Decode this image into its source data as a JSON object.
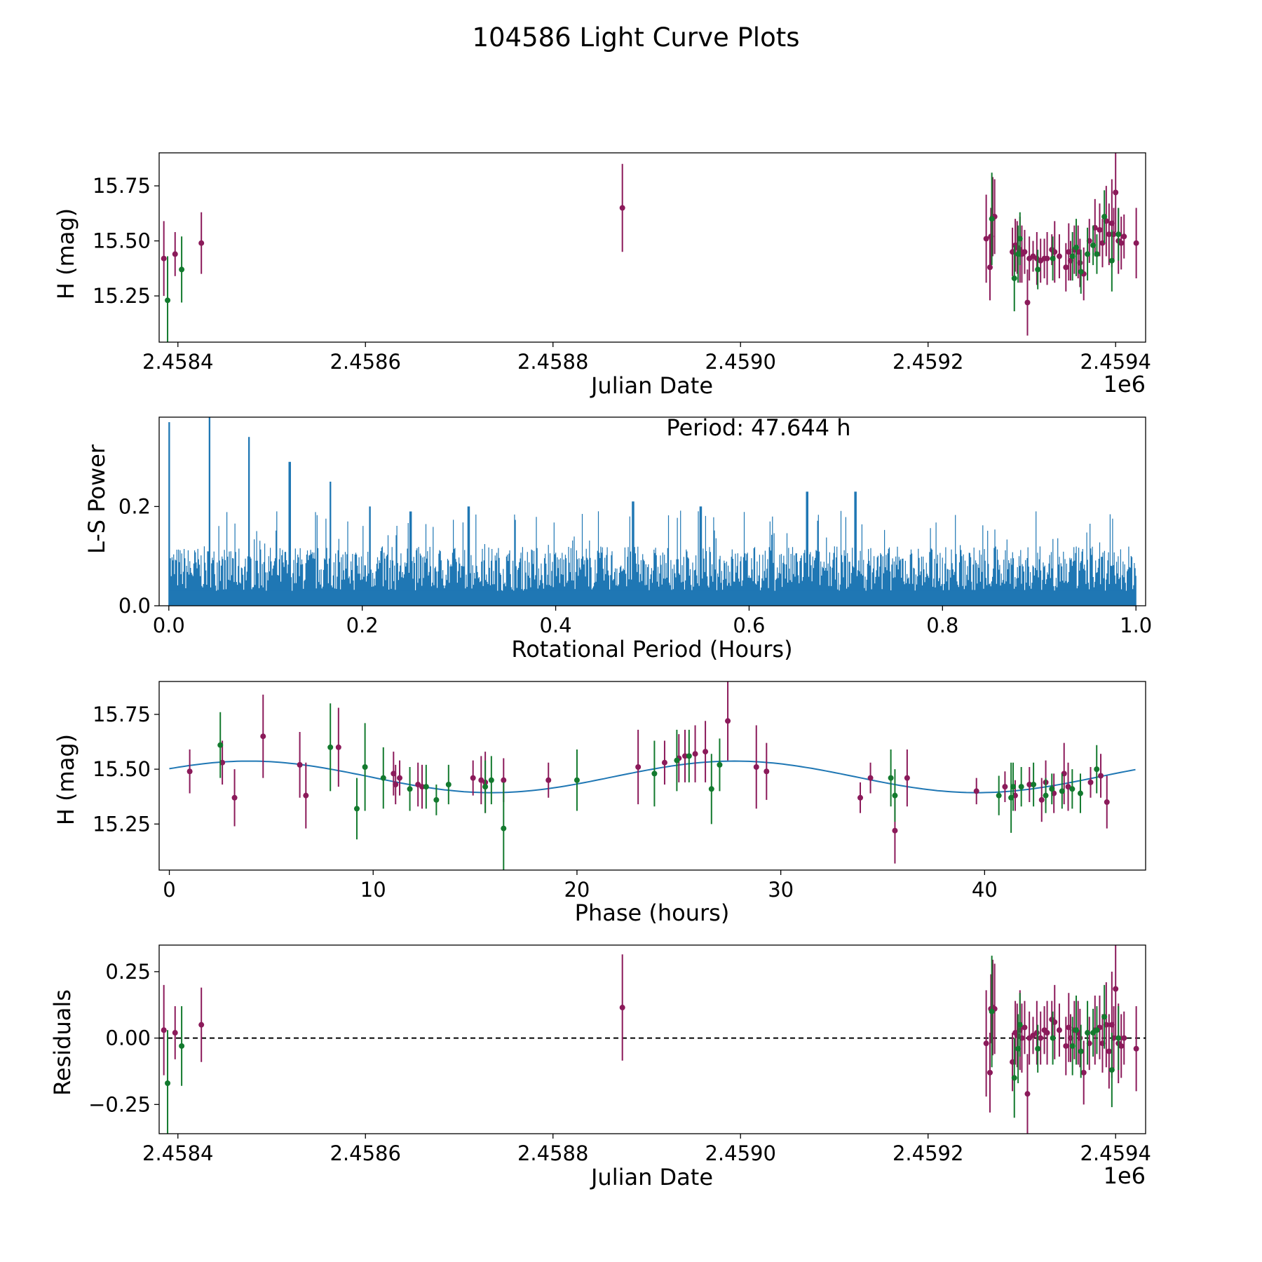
{
  "title": "104586 Light Curve Plots",
  "colors": {
    "band_a": "#8b1a5a",
    "band_b": "#137a2e",
    "periodogram": "#1f77b4",
    "model": "#1f77b4",
    "zero_line": "#000000"
  },
  "chart_data": [
    {
      "id": "lightcurve",
      "type": "scatter",
      "xlabel": "Julian Date",
      "ylabel": "H (mag)",
      "x_offset_label": "1e6",
      "xlim": [
        2.45838,
        2.459432
      ],
      "ylim": [
        15.04,
        15.9
      ],
      "xticks": [
        2.4584,
        2.4586,
        2.4588,
        2.459,
        2.4592,
        2.4594
      ],
      "xtick_labels": [
        "2.4584",
        "2.4586",
        "2.4588",
        "2.4590",
        "2.4592",
        "2.4594"
      ],
      "yticks": [
        15.25,
        15.5,
        15.75
      ],
      "ytick_labels": [
        "15.25",
        "15.50",
        "15.75"
      ],
      "series": [
        {
          "name": "band_a",
          "color": "#8b1a5a",
          "x": [
            2.458385,
            2.458397,
            2.458425,
            2.458874,
            2.459262,
            2.459266,
            2.459267,
            2.459269,
            2.459271,
            2.45929,
            2.459293,
            2.459295,
            2.459298,
            2.4593,
            2.459303,
            2.459306,
            2.459308,
            2.459312,
            2.459316,
            2.45932,
            2.459324,
            2.459327,
            2.459332,
            2.459335,
            2.45934,
            2.459347,
            2.45935,
            2.459352,
            2.459356,
            2.45936,
            2.459362,
            2.459366,
            2.459372,
            2.459378,
            2.459383,
            2.459386,
            2.45939,
            2.459393,
            2.459396,
            2.459398,
            2.4594,
            2.459403,
            2.459406,
            2.459409,
            2.459422
          ],
          "y": [
            15.42,
            15.44,
            15.49,
            15.65,
            15.51,
            15.38,
            15.52,
            15.61,
            15.61,
            15.45,
            15.48,
            15.47,
            15.46,
            15.44,
            15.45,
            15.22,
            15.42,
            15.43,
            15.42,
            15.41,
            15.42,
            15.42,
            15.46,
            15.45,
            15.43,
            15.38,
            15.45,
            15.41,
            15.46,
            15.45,
            15.4,
            15.35,
            15.5,
            15.56,
            15.55,
            15.49,
            15.59,
            15.53,
            15.58,
            15.53,
            15.72,
            15.5,
            15.49,
            15.52,
            15.49
          ],
          "err": [
            0.17,
            0.1,
            0.14,
            0.2,
            0.2,
            0.15,
            0.13,
            0.18,
            0.17,
            0.11,
            0.12,
            0.12,
            0.15,
            0.13,
            0.1,
            0.15,
            0.1,
            0.07,
            0.12,
            0.1,
            0.09,
            0.12,
            0.07,
            0.14,
            0.1,
            0.11,
            0.13,
            0.09,
            0.11,
            0.12,
            0.11,
            0.12,
            0.1,
            0.13,
            0.12,
            0.11,
            0.16,
            0.14,
            0.2,
            0.12,
            0.18,
            0.15,
            0.12,
            0.1,
            0.16
          ]
        },
        {
          "name": "band_b",
          "color": "#137a2e",
          "x": [
            2.458389,
            2.458404,
            2.459268,
            2.459292,
            2.459296,
            2.459298,
            2.459317,
            2.459333,
            2.459354,
            2.459358,
            2.459363,
            2.45937,
            2.459376,
            2.45938,
            2.459388,
            2.459396,
            2.459403
          ],
          "y": [
            15.23,
            15.37,
            15.6,
            15.33,
            15.44,
            15.51,
            15.37,
            15.42,
            15.43,
            15.47,
            15.36,
            15.44,
            15.48,
            15.44,
            15.61,
            15.41,
            15.53
          ],
          "err": [
            0.2,
            0.15,
            0.21,
            0.15,
            0.13,
            0.12,
            0.09,
            0.1,
            0.11,
            0.13,
            0.1,
            0.12,
            0.09,
            0.09,
            0.12,
            0.14,
            0.12
          ]
        }
      ]
    },
    {
      "id": "periodogram",
      "type": "line",
      "xlabel": "Rotational Period (Hours)",
      "ylabel": "L-S Power",
      "annotation": "Period: 47.644 h",
      "xlim": [
        -0.01,
        1.01
      ],
      "ylim": [
        0.0,
        0.38
      ],
      "xticks": [
        0.0,
        0.2,
        0.4,
        0.6,
        0.8,
        1.0
      ],
      "xtick_labels": [
        "0.0",
        "0.2",
        "0.4",
        "0.6",
        "0.8",
        "1.0"
      ],
      "yticks": [
        0.0,
        0.2
      ],
      "ytick_labels": [
        "0.0",
        "0.2"
      ],
      "samples": 1200,
      "peaks": [
        {
          "x": 0.0,
          "power": 0.37
        },
        {
          "x": 0.042,
          "power": 0.38
        },
        {
          "x": 0.083,
          "power": 0.34
        },
        {
          "x": 0.125,
          "power": 0.29
        },
        {
          "x": 0.167,
          "power": 0.25
        },
        {
          "x": 0.208,
          "power": 0.2
        },
        {
          "x": 0.25,
          "power": 0.19
        },
        {
          "x": 0.31,
          "power": 0.2
        },
        {
          "x": 0.48,
          "power": 0.21
        },
        {
          "x": 0.66,
          "power": 0.23
        },
        {
          "x": 0.71,
          "power": 0.23
        },
        {
          "x": 0.55,
          "power": 0.2
        }
      ],
      "noise_level": 0.12
    },
    {
      "id": "phased",
      "type": "scatter",
      "xlabel": "Phase (hours)",
      "ylabel": "H (mag)",
      "xlim": [
        -0.5,
        47.9
      ],
      "ylim": [
        15.04,
        15.9
      ],
      "xticks": [
        0,
        10,
        20,
        30,
        40
      ],
      "xtick_labels": [
        "0",
        "10",
        "20",
        "30",
        "40"
      ],
      "yticks": [
        15.25,
        15.5,
        15.75
      ],
      "ytick_labels": [
        "15.25",
        "15.50",
        "15.75"
      ],
      "model": {
        "period": 47.644,
        "mean": 15.465,
        "amplitude": 0.072,
        "peak_phase": 3.9,
        "samples": 200
      },
      "series": [
        {
          "name": "band_a",
          "color": "#8b1a5a",
          "x": [
            1.0,
            2.6,
            3.2,
            4.6,
            6.4,
            6.7,
            8.3,
            11.0,
            11.1,
            11.3,
            12.2,
            12.4,
            14.9,
            15.3,
            15.5,
            16.4,
            18.6,
            23.0,
            24.3,
            25.0,
            25.3,
            25.8,
            26.3,
            27.4,
            28.8,
            29.3,
            33.9,
            34.4,
            35.6,
            36.2,
            39.6,
            41.0,
            41.5,
            42.2,
            42.8,
            43.0,
            43.4,
            43.9,
            44.1,
            45.2,
            45.7,
            46.0
          ],
          "y": [
            15.49,
            15.53,
            15.37,
            15.65,
            15.52,
            15.38,
            15.6,
            15.48,
            15.43,
            15.46,
            15.43,
            15.42,
            15.46,
            15.45,
            15.44,
            15.45,
            15.45,
            15.51,
            15.53,
            15.55,
            15.56,
            15.57,
            15.58,
            15.72,
            15.51,
            15.49,
            15.37,
            15.46,
            15.22,
            15.46,
            15.4,
            15.42,
            15.38,
            15.43,
            15.36,
            15.44,
            15.39,
            15.48,
            15.42,
            15.44,
            15.47,
            15.35
          ],
          "err": [
            0.1,
            0.1,
            0.13,
            0.19,
            0.15,
            0.15,
            0.18,
            0.1,
            0.09,
            0.08,
            0.1,
            0.1,
            0.08,
            0.11,
            0.14,
            0.1,
            0.08,
            0.17,
            0.1,
            0.11,
            0.12,
            0.13,
            0.14,
            0.18,
            0.19,
            0.13,
            0.07,
            0.07,
            0.15,
            0.13,
            0.06,
            0.07,
            0.07,
            0.08,
            0.1,
            0.1,
            0.09,
            0.14,
            0.11,
            0.07,
            0.1,
            0.12
          ]
        },
        {
          "name": "band_b",
          "color": "#137a2e",
          "x": [
            2.5,
            7.9,
            9.2,
            9.6,
            10.5,
            11.8,
            12.6,
            13.1,
            13.7,
            15.5,
            15.8,
            16.4,
            20.0,
            23.8,
            24.9,
            25.5,
            26.6,
            27.0,
            35.4,
            35.6,
            40.7,
            41.3,
            41.4,
            41.8,
            42.4,
            43.0,
            43.3,
            43.8,
            44.3,
            44.7,
            45.5
          ],
          "y": [
            15.61,
            15.6,
            15.32,
            15.51,
            15.46,
            15.41,
            15.42,
            15.36,
            15.43,
            15.42,
            15.45,
            15.23,
            15.45,
            15.48,
            15.54,
            15.56,
            15.41,
            15.52,
            15.46,
            15.38,
            15.38,
            15.37,
            15.42,
            15.42,
            15.43,
            15.38,
            15.41,
            15.4,
            15.41,
            15.39,
            15.5
          ],
          "err": [
            0.15,
            0.2,
            0.14,
            0.2,
            0.14,
            0.1,
            0.1,
            0.07,
            0.09,
            0.12,
            0.11,
            0.21,
            0.14,
            0.15,
            0.14,
            0.12,
            0.16,
            0.12,
            0.13,
            0.12,
            0.09,
            0.16,
            0.11,
            0.09,
            0.1,
            0.08,
            0.07,
            0.08,
            0.09,
            0.09,
            0.11
          ]
        }
      ]
    },
    {
      "id": "residuals",
      "type": "scatter",
      "xlabel": "Julian Date",
      "ylabel": "Residuals",
      "x_offset_label": "1e6",
      "xlim": [
        2.45838,
        2.459432
      ],
      "ylim": [
        -0.36,
        0.35
      ],
      "xticks": [
        2.4584,
        2.4586,
        2.4588,
        2.459,
        2.4592,
        2.4594
      ],
      "xtick_labels": [
        "2.4584",
        "2.4586",
        "2.4588",
        "2.4590",
        "2.4592",
        "2.4594"
      ],
      "yticks": [
        -0.25,
        0.0,
        0.25
      ],
      "ytick_labels": [
        "−0.25",
        "0.00",
        "0.25"
      ],
      "zero_line": 0.0,
      "series": [
        {
          "name": "band_a",
          "color": "#8b1a5a",
          "x": [
            2.458385,
            2.458397,
            2.458425,
            2.458874,
            2.459262,
            2.459266,
            2.459267,
            2.459269,
            2.459271,
            2.45929,
            2.459293,
            2.459295,
            2.459298,
            2.4593,
            2.459303,
            2.459306,
            2.459308,
            2.459312,
            2.459316,
            2.45932,
            2.459324,
            2.459327,
            2.459332,
            2.459335,
            2.45934,
            2.459347,
            2.45935,
            2.459352,
            2.459356,
            2.45936,
            2.459362,
            2.459366,
            2.459372,
            2.459378,
            2.459383,
            2.459386,
            2.45939,
            2.459393,
            2.459396,
            2.459398,
            2.4594,
            2.459403,
            2.459406,
            2.459409,
            2.459422
          ],
          "y": [
            0.03,
            0.02,
            0.05,
            0.115,
            -0.02,
            -0.13,
            0.11,
            0.115,
            0.11,
            -0.09,
            0.02,
            0.01,
            0.03,
            0.0,
            0.04,
            -0.21,
            0.0,
            0.01,
            0.02,
            0.0,
            0.03,
            0.02,
            0.07,
            0.06,
            0.03,
            -0.03,
            0.04,
            0.0,
            0.03,
            0.02,
            0.0,
            -0.13,
            -0.02,
            0.03,
            0.04,
            -0.02,
            0.05,
            -0.05,
            0.05,
            0.0,
            0.185,
            -0.02,
            -0.03,
            0.0,
            -0.04
          ],
          "err": [
            0.17,
            0.1,
            0.14,
            0.2,
            0.2,
            0.15,
            0.13,
            0.18,
            0.17,
            0.11,
            0.12,
            0.12,
            0.15,
            0.13,
            0.1,
            0.15,
            0.1,
            0.07,
            0.12,
            0.1,
            0.09,
            0.12,
            0.07,
            0.14,
            0.1,
            0.11,
            0.13,
            0.09,
            0.11,
            0.12,
            0.11,
            0.12,
            0.1,
            0.13,
            0.12,
            0.11,
            0.16,
            0.14,
            0.2,
            0.12,
            0.18,
            0.15,
            0.12,
            0.1,
            0.16
          ]
        },
        {
          "name": "band_b",
          "color": "#137a2e",
          "x": [
            2.458389,
            2.458404,
            2.459268,
            2.459292,
            2.459296,
            2.459298,
            2.459317,
            2.459333,
            2.459354,
            2.459358,
            2.459363,
            2.45937,
            2.459376,
            2.45938,
            2.459388,
            2.459396,
            2.459403
          ],
          "y": [
            -0.17,
            -0.03,
            0.1,
            -0.15,
            -0.04,
            0.05,
            -0.04,
            0.0,
            -0.03,
            0.03,
            -0.05,
            0.02,
            0.02,
            0.03,
            0.08,
            -0.12,
            0.0
          ],
          "err": [
            0.2,
            0.15,
            0.21,
            0.15,
            0.13,
            0.12,
            0.09,
            0.1,
            0.11,
            0.13,
            0.1,
            0.12,
            0.09,
            0.09,
            0.12,
            0.14,
            0.12
          ]
        }
      ]
    }
  ]
}
